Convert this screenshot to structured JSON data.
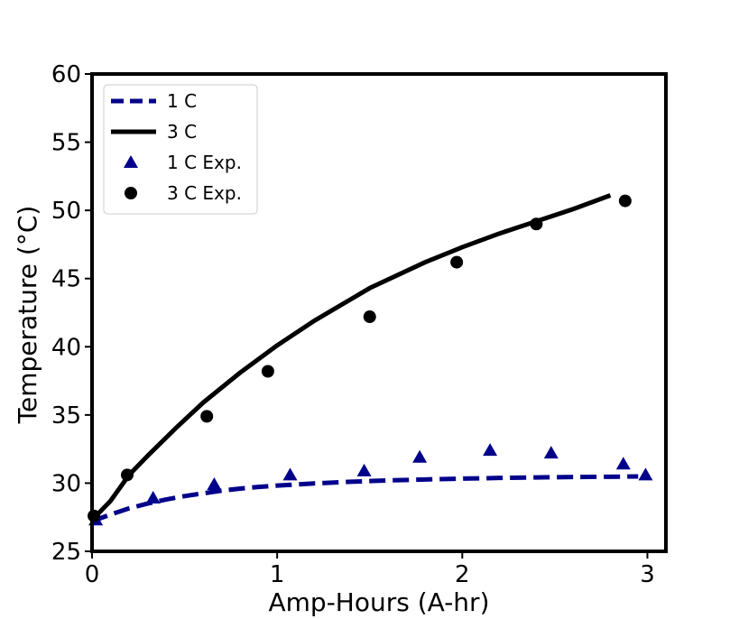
{
  "chart_data": {
    "type": "line",
    "title": "",
    "xlabel": "Amp-Hours (A-hr)",
    "ylabel": "Temperature (°C)",
    "xlim": [
      0,
      3.1
    ],
    "ylim": [
      25,
      60
    ],
    "xticks": [
      0,
      1,
      2,
      3
    ],
    "xtick_labels": [
      "0",
      "1",
      "2",
      "3"
    ],
    "yticks": [
      25,
      30,
      35,
      40,
      45,
      50,
      55,
      60
    ],
    "ytick_labels": [
      "25",
      "30",
      "35",
      "40",
      "45",
      "50",
      "55",
      "60"
    ],
    "grid": false,
    "legend_position": "top-left",
    "series": [
      {
        "name": "1 C",
        "kind": "line",
        "style": "dashed",
        "color": "#00008b",
        "x": [
          0,
          0.1,
          0.2,
          0.3,
          0.4,
          0.5,
          0.6,
          0.7,
          0.8,
          0.9,
          1.0,
          1.2,
          1.4,
          1.6,
          1.8,
          2.0,
          2.2,
          2.4,
          2.6,
          2.8,
          2.95
        ],
        "y": [
          27.2,
          27.7,
          28.15,
          28.5,
          28.8,
          29.05,
          29.25,
          29.45,
          29.6,
          29.72,
          29.82,
          29.98,
          30.1,
          30.2,
          30.27,
          30.33,
          30.38,
          30.42,
          30.45,
          30.47,
          30.49
        ]
      },
      {
        "name": "3 C",
        "kind": "line",
        "style": "solid",
        "color": "#000000",
        "x": [
          0,
          0.1,
          0.2,
          0.3,
          0.45,
          0.6,
          0.8,
          1.0,
          1.2,
          1.5,
          1.8,
          2.0,
          2.2,
          2.4,
          2.6,
          2.8
        ],
        "y": [
          27.3,
          28.7,
          30.6,
          32.0,
          34.0,
          35.9,
          38.1,
          40.1,
          41.9,
          44.3,
          46.2,
          47.3,
          48.3,
          49.2,
          50.1,
          51.1
        ]
      },
      {
        "name": "1 C Exp.",
        "kind": "scatter",
        "marker": "triangle",
        "color": "#00008b",
        "x": [
          0.02,
          0.33,
          0.66,
          1.07,
          1.47,
          1.77,
          2.15,
          2.48,
          2.87,
          2.99
        ],
        "y": [
          27.3,
          28.9,
          29.9,
          30.6,
          30.9,
          31.9,
          32.4,
          32.2,
          31.4,
          30.6
        ]
      },
      {
        "name": "3 C Exp.",
        "kind": "scatter",
        "marker": "circle",
        "color": "#000000",
        "x": [
          0.01,
          0.19,
          0.62,
          0.95,
          1.5,
          1.97,
          2.4,
          2.88
        ],
        "y": [
          27.6,
          30.6,
          34.9,
          38.2,
          42.2,
          46.2,
          49.0,
          50.7
        ]
      }
    ]
  }
}
